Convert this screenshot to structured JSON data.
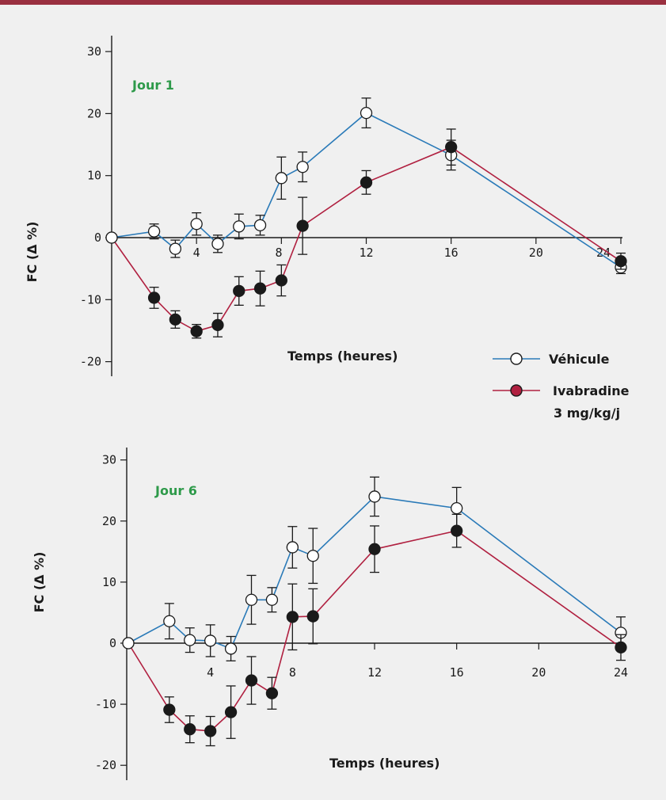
{
  "colors": {
    "top_bar": "#9a3040",
    "background": "#f0f0f0",
    "vehicule": "#2a7ab8",
    "ivabradine": "#b02040",
    "day_label": "#2e9a4a"
  },
  "legend": {
    "vehicule_label": "Véhicule",
    "ivabradine_label": "Ivabradine",
    "ivabradine_dose": "3 mg/kg/j"
  },
  "chart_data": [
    {
      "type": "line",
      "title": "Jour 1",
      "xlabel": "Temps (heures)",
      "ylabel": "FC (Δ %)",
      "xlim": [
        0,
        24
      ],
      "ylim": [
        -20,
        30
      ],
      "xticks": [
        4,
        8,
        12,
        16,
        20,
        24
      ],
      "yticks": [
        -20,
        -10,
        0,
        10,
        20,
        30
      ],
      "x_tick_labels": [
        "4",
        "8",
        "12",
        "16",
        "20",
        "24"
      ],
      "y_tick_labels": [
        "-20",
        "-10",
        "0",
        "10",
        "20",
        "30"
      ],
      "grid": false,
      "legend_position": "bottom-right",
      "series": [
        {
          "name": "Véhicule",
          "marker": "open-circle",
          "x": [
            0,
            2,
            3,
            4,
            5,
            6,
            7,
            8,
            9,
            12,
            16,
            24
          ],
          "y": [
            0,
            1.0,
            -1.8,
            2.2,
            -1.0,
            1.8,
            2.0,
            9.6,
            11.4,
            20.1,
            13.3,
            -4.8
          ],
          "err": [
            0,
            1.2,
            1.4,
            1.8,
            1.4,
            2.0,
            1.6,
            3.4,
            2.4,
            2.4,
            2.4,
            1.0
          ]
        },
        {
          "name": "Ivabradine",
          "marker": "filled-circle",
          "x": [
            0,
            2,
            3,
            4,
            5,
            6,
            7,
            8,
            9,
            12,
            16,
            24
          ],
          "y": [
            0,
            -9.7,
            -13.2,
            -15.1,
            -14.1,
            -8.6,
            -8.2,
            -6.9,
            1.9,
            8.9,
            14.6,
            -3.8
          ],
          "err": [
            0,
            1.7,
            1.4,
            1.1,
            1.9,
            2.3,
            2.8,
            2.5,
            4.6,
            1.9,
            2.9,
            1.3
          ]
        }
      ]
    },
    {
      "type": "line",
      "title": "Jour 6",
      "xlabel": "Temps (heures)",
      "ylabel": "FC (Δ %)",
      "xlim": [
        0,
        24
      ],
      "ylim": [
        -20,
        30
      ],
      "xticks": [
        4,
        8,
        12,
        16,
        20,
        24
      ],
      "yticks": [
        -20,
        -10,
        0,
        10,
        20,
        30
      ],
      "x_tick_labels": [
        "4",
        "8",
        "12",
        "16",
        "20",
        "24"
      ],
      "y_tick_labels": [
        "-20",
        "-10",
        "0",
        "10",
        "20",
        "30"
      ],
      "grid": false,
      "series": [
        {
          "name": "Véhicule",
          "marker": "open-circle",
          "x": [
            0,
            2,
            3,
            4,
            5,
            6,
            7,
            8,
            9,
            12,
            16,
            24
          ],
          "y": [
            0,
            3.6,
            0.5,
            0.4,
            -0.9,
            7.1,
            7.1,
            15.7,
            14.3,
            24.0,
            22.1,
            1.7
          ],
          "err": [
            0,
            2.9,
            2.0,
            2.6,
            2.0,
            4.0,
            2.0,
            3.4,
            4.5,
            3.2,
            3.4,
            2.6
          ]
        },
        {
          "name": "Ivabradine",
          "marker": "filled-circle",
          "x": [
            0,
            2,
            3,
            4,
            5,
            6,
            7,
            8,
            9,
            12,
            16,
            24
          ],
          "y": [
            0,
            -10.9,
            -14.1,
            -14.4,
            -11.3,
            -6.1,
            -8.2,
            4.3,
            4.4,
            15.4,
            18.4,
            -0.7
          ],
          "err": [
            0,
            2.1,
            2.2,
            2.4,
            4.3,
            3.9,
            2.6,
            5.4,
            4.5,
            3.8,
            2.7,
            2.1
          ]
        }
      ]
    }
  ]
}
